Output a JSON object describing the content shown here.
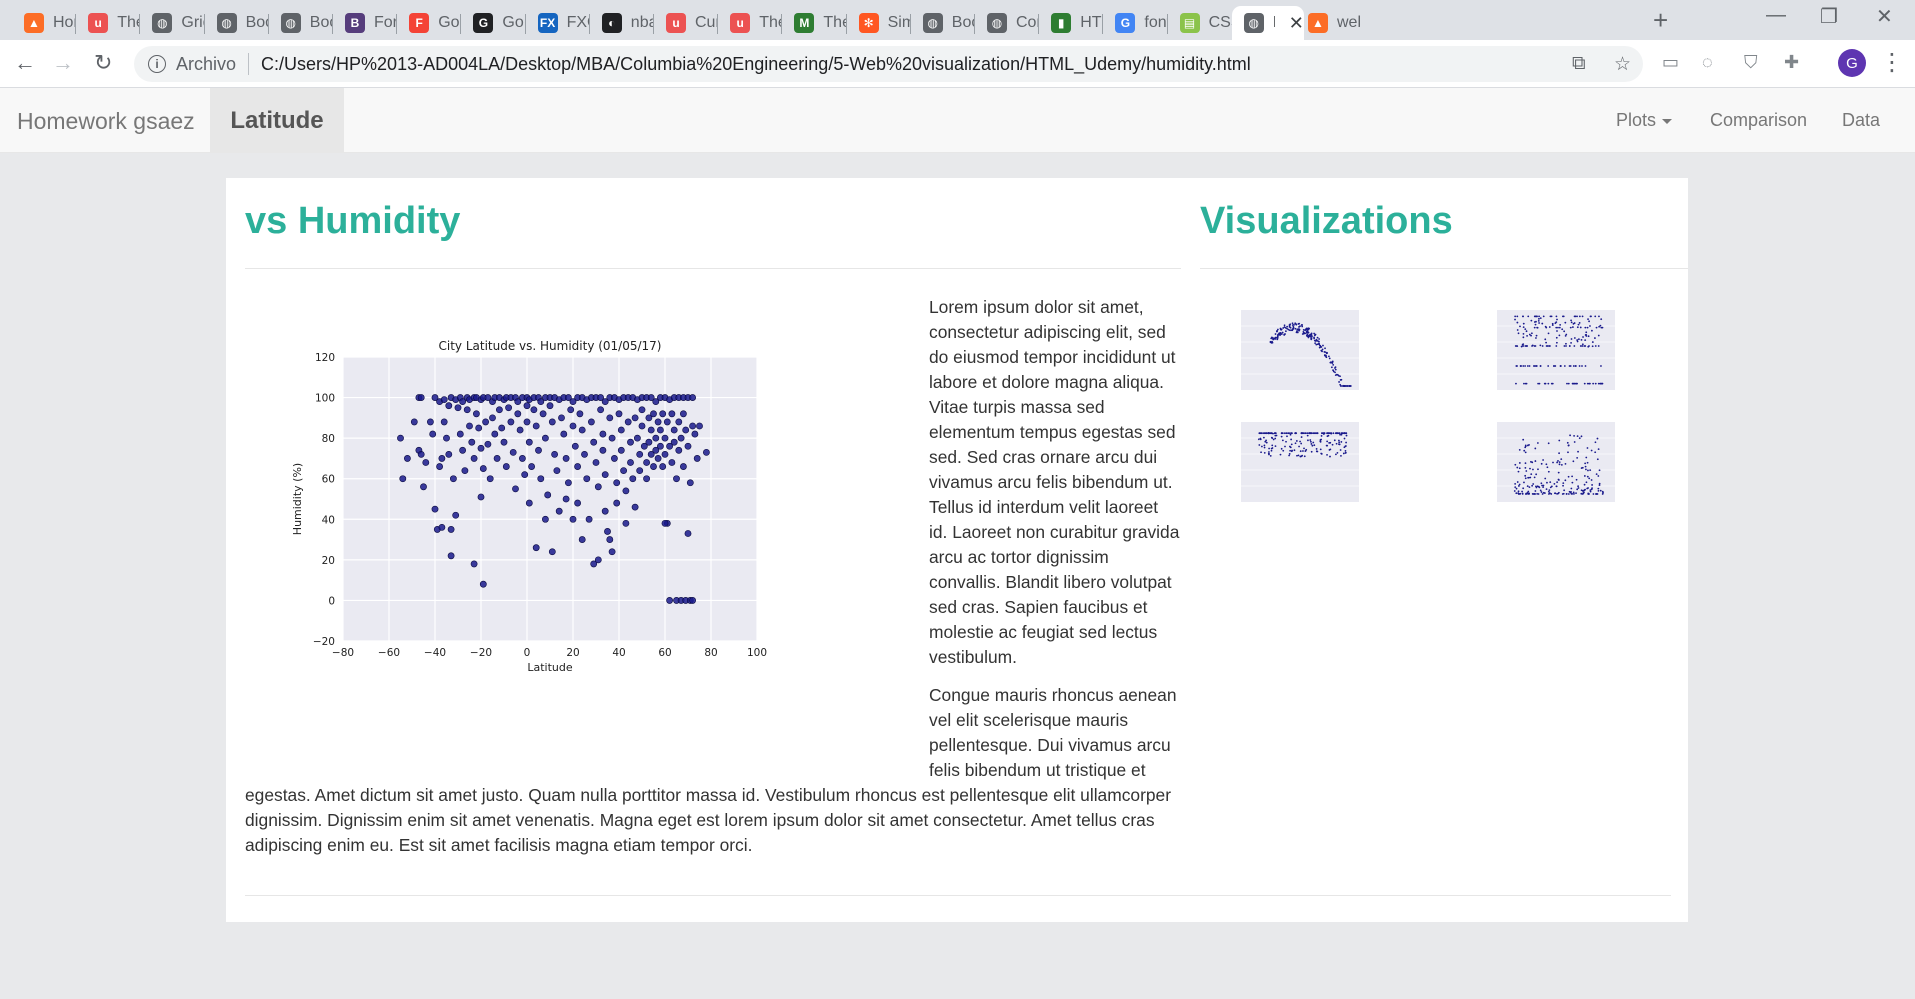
{
  "browser": {
    "tabs": [
      {
        "title": "Hom",
        "fav_color": "#fc6d26",
        "fav_glyph": "▲"
      },
      {
        "title": "The",
        "fav_color": "#ec5252",
        "fav_glyph": "u"
      },
      {
        "title": "Grid",
        "fav_color": "#5f6368",
        "fav_glyph": "◍"
      },
      {
        "title": "Boo",
        "fav_color": "#5f6368",
        "fav_glyph": "◍"
      },
      {
        "title": "Boo",
        "fav_color": "#5f6368",
        "fav_glyph": "◍"
      },
      {
        "title": "Forr",
        "fav_color": "#563d7c",
        "fav_glyph": "B"
      },
      {
        "title": "Goo",
        "fav_color": "#f44336",
        "fav_glyph": "F"
      },
      {
        "title": "GoD",
        "fav_color": "#202124",
        "fav_glyph": "G"
      },
      {
        "title": "FXC",
        "fav_color": "#1565c0",
        "fav_glyph": "FX"
      },
      {
        "title": "nba",
        "fav_color": "#202124",
        "fav_glyph": "◐"
      },
      {
        "title": "Curs",
        "fav_color": "#ec5252",
        "fav_glyph": "u"
      },
      {
        "title": "The",
        "fav_color": "#ec5252",
        "fav_glyph": "u"
      },
      {
        "title": "The",
        "fav_color": "#2e7d32",
        "fav_glyph": "M"
      },
      {
        "title": "Sim",
        "fav_color": "#ff5722",
        "fav_glyph": "✻"
      },
      {
        "title": "Boo",
        "fav_color": "#5f6368",
        "fav_glyph": "◍"
      },
      {
        "title": "Con",
        "fav_color": "#5f6368",
        "fav_glyph": "◍"
      },
      {
        "title": "HTM",
        "fav_color": "#2e7d32",
        "fav_glyph": "▮"
      },
      {
        "title": "font",
        "fav_color": "#4285f4",
        "fav_glyph": "G"
      },
      {
        "title": "CSS",
        "fav_color": "#8bc34a",
        "fav_glyph": "▤"
      },
      {
        "title": "I",
        "fav_color": "#5f6368",
        "fav_glyph": "◍",
        "active": true
      },
      {
        "title": "web",
        "fav_color": "#fc6d26",
        "fav_glyph": "▲"
      }
    ],
    "new_tab_glyph": "+",
    "omnibox": {
      "scheme_label": "Archivo",
      "url": "C:/Users/HP%2013-AD004LA/Desktop/MBA/Columbia%20Engineering/5-Web%20visualization/HTML_Udemy/humidity.html"
    },
    "avatar_letter": "G"
  },
  "navbar": {
    "brand": "Homework gsaez",
    "active": "Latitude",
    "links": {
      "plots": "Plots",
      "comparison": "Comparison",
      "data": "Data"
    }
  },
  "main": {
    "heading": "vs Humidity",
    "paragraphs": [
      "Lorem ipsum dolor sit amet, consectetur adipiscing elit, sed do eiusmod tempor incididunt ut labore et dolore magna aliqua. Vitae turpis massa sed elementum tempus egestas sed sed. Sed cras ornare arcu dui vivamus arcu felis bibendum ut. Tellus id interdum velit laoreet id. Laoreet non curabitur gravida arcu ac tortor dignissim convallis. Blandit libero volutpat sed cras. Sapien faucibus et molestie ac feugiat sed lectus vestibulum.",
      "Congue mauris rhoncus aenean vel elit scelerisque mauris pellentesque. Dui vivamus arcu felis bibendum ut tristique et egestas. Amet dictum sit amet justo. Quam nulla porttitor massa id. Vestibulum rhoncus est pellentesque elit ullamcorper dignissim. Dignissim enim sit amet venenatis. Magna eget est lorem ipsum dolor sit amet consectetur. Amet tellus cras adipiscing enim eu. Est sit amet facilisis magna etiam tempor orci."
    ]
  },
  "sidebar": {
    "heading": "Visualizations"
  },
  "chart_data": {
    "type": "scatter",
    "title": "City Latitude vs. Humidity (01/05/17)",
    "xlabel": "Latitude",
    "ylabel": "Humidity (%)",
    "xlim": [
      -80,
      100
    ],
    "ylim": [
      -20,
      120
    ],
    "xticks": [
      -80,
      -60,
      -40,
      -20,
      0,
      20,
      40,
      60,
      80,
      100
    ],
    "yticks": [
      -20,
      0,
      20,
      40,
      60,
      80,
      100,
      120
    ],
    "grid": true,
    "point_color": "#1a1a8c",
    "background": "#eaeaf2",
    "series": [
      {
        "points": [
          [
            -47,
            100
          ],
          [
            -46,
            100
          ],
          [
            -40,
            100
          ],
          [
            -38,
            98
          ],
          [
            -36,
            99
          ],
          [
            -34,
            96
          ],
          [
            -33,
            100
          ],
          [
            -31,
            99
          ],
          [
            -29,
            100
          ],
          [
            -28,
            98
          ],
          [
            -26,
            100
          ],
          [
            -25,
            99
          ],
          [
            -23,
            100
          ],
          [
            -22,
            100
          ],
          [
            -20,
            99
          ],
          [
            -19,
            100
          ],
          [
            -17,
            100
          ],
          [
            -15,
            98
          ],
          [
            -14,
            100
          ],
          [
            -12,
            100
          ],
          [
            -10,
            99
          ],
          [
            -9,
            100
          ],
          [
            -7,
            100
          ],
          [
            -5,
            100
          ],
          [
            -4,
            98
          ],
          [
            -2,
            100
          ],
          [
            0,
            100
          ],
          [
            1,
            99
          ],
          [
            3,
            100
          ],
          [
            5,
            100
          ],
          [
            6,
            98
          ],
          [
            8,
            100
          ],
          [
            10,
            100
          ],
          [
            12,
            100
          ],
          [
            14,
            99
          ],
          [
            16,
            100
          ],
          [
            18,
            100
          ],
          [
            20,
            98
          ],
          [
            22,
            100
          ],
          [
            24,
            100
          ],
          [
            26,
            99
          ],
          [
            28,
            100
          ],
          [
            30,
            100
          ],
          [
            32,
            100
          ],
          [
            34,
            98
          ],
          [
            36,
            100
          ],
          [
            38,
            100
          ],
          [
            40,
            99
          ],
          [
            42,
            100
          ],
          [
            44,
            100
          ],
          [
            46,
            100
          ],
          [
            48,
            99
          ],
          [
            50,
            100
          ],
          [
            52,
            100
          ],
          [
            54,
            100
          ],
          [
            56,
            98
          ],
          [
            58,
            100
          ],
          [
            60,
            100
          ],
          [
            62,
            99
          ],
          [
            64,
            100
          ],
          [
            66,
            100
          ],
          [
            68,
            100
          ],
          [
            70,
            100
          ],
          [
            72,
            100
          ],
          [
            -55,
            80
          ],
          [
            -54,
            60
          ],
          [
            -52,
            70
          ],
          [
            -49,
            88
          ],
          [
            -47,
            74
          ],
          [
            -46,
            72
          ],
          [
            -45,
            56
          ],
          [
            -44,
            68
          ],
          [
            -42,
            88
          ],
          [
            -41,
            82
          ],
          [
            -40,
            45
          ],
          [
            -39,
            35
          ],
          [
            -38,
            66
          ],
          [
            -37,
            70
          ],
          [
            -37,
            36
          ],
          [
            -36,
            88
          ],
          [
            -35,
            80
          ],
          [
            -34,
            72
          ],
          [
            -33,
            35
          ],
          [
            -33,
            22
          ],
          [
            -32,
            60
          ],
          [
            -31,
            42
          ],
          [
            -30,
            95
          ],
          [
            -29,
            82
          ],
          [
            -28,
            74
          ],
          [
            -27,
            64
          ],
          [
            -26,
            94
          ],
          [
            -25,
            86
          ],
          [
            -24,
            78
          ],
          [
            -23,
            70
          ],
          [
            -23,
            18
          ],
          [
            -22,
            92
          ],
          [
            -21,
            85
          ],
          [
            -20,
            75
          ],
          [
            -20,
            51
          ],
          [
            -19,
            65
          ],
          [
            -19,
            8
          ],
          [
            -18,
            88
          ],
          [
            -17,
            77
          ],
          [
            -16,
            60
          ],
          [
            -15,
            90
          ],
          [
            -14,
            82
          ],
          [
            -13,
            70
          ],
          [
            -12,
            94
          ],
          [
            -11,
            85
          ],
          [
            -10,
            78
          ],
          [
            -9,
            66
          ],
          [
            -8,
            95
          ],
          [
            -7,
            88
          ],
          [
            -6,
            73
          ],
          [
            -5,
            55
          ],
          [
            -4,
            92
          ],
          [
            -3,
            84
          ],
          [
            -2,
            70
          ],
          [
            -1,
            62
          ],
          [
            0,
            96
          ],
          [
            0,
            88
          ],
          [
            1,
            78
          ],
          [
            1,
            48
          ],
          [
            2,
            66
          ],
          [
            3,
            94
          ],
          [
            4,
            86
          ],
          [
            4,
            26
          ],
          [
            5,
            74
          ],
          [
            6,
            60
          ],
          [
            7,
            92
          ],
          [
            8,
            80
          ],
          [
            8,
            40
          ],
          [
            9,
            52
          ],
          [
            10,
            96
          ],
          [
            11,
            88
          ],
          [
            11,
            24
          ],
          [
            12,
            72
          ],
          [
            13,
            64
          ],
          [
            14,
            44
          ],
          [
            15,
            90
          ],
          [
            16,
            82
          ],
          [
            17,
            70
          ],
          [
            17,
            50
          ],
          [
            18,
            58
          ],
          [
            19,
            94
          ],
          [
            20,
            86
          ],
          [
            20,
            40
          ],
          [
            21,
            76
          ],
          [
            22,
            66
          ],
          [
            22,
            48
          ],
          [
            23,
            92
          ],
          [
            24,
            84
          ],
          [
            24,
            30
          ],
          [
            25,
            72
          ],
          [
            26,
            60
          ],
          [
            27,
            40
          ],
          [
            28,
            88
          ],
          [
            29,
            78
          ],
          [
            29,
            18
          ],
          [
            30,
            68
          ],
          [
            31,
            56
          ],
          [
            31,
            20
          ],
          [
            32,
            94
          ],
          [
            33,
            82
          ],
          [
            33,
            74
          ],
          [
            34,
            62
          ],
          [
            34,
            44
          ],
          [
            35,
            34
          ],
          [
            36,
            90
          ],
          [
            36,
            30
          ],
          [
            37,
            80
          ],
          [
            37,
            24
          ],
          [
            38,
            70
          ],
          [
            39,
            58
          ],
          [
            39,
            48
          ],
          [
            40,
            92
          ],
          [
            41,
            84
          ],
          [
            41,
            74
          ],
          [
            42,
            64
          ],
          [
            43,
            54
          ],
          [
            43,
            38
          ],
          [
            44,
            88
          ],
          [
            45,
            78
          ],
          [
            45,
            68
          ],
          [
            46,
            60
          ],
          [
            47,
            90
          ],
          [
            47,
            46
          ],
          [
            48,
            80
          ],
          [
            49,
            72
          ],
          [
            49,
            64
          ],
          [
            50,
            94
          ],
          [
            50,
            86
          ],
          [
            51,
            76
          ],
          [
            52,
            68
          ],
          [
            52,
            60
          ],
          [
            53,
            90
          ],
          [
            53,
            78
          ],
          [
            54,
            84
          ],
          [
            54,
            72
          ],
          [
            55,
            92
          ],
          [
            55,
            66
          ],
          [
            56,
            80
          ],
          [
            56,
            74
          ],
          [
            57,
            88
          ],
          [
            57,
            70
          ],
          [
            58,
            84
          ],
          [
            58,
            76
          ],
          [
            59,
            92
          ],
          [
            59,
            66
          ],
          [
            60,
            80
          ],
          [
            60,
            72
          ],
          [
            61,
            88
          ],
          [
            61,
            38
          ],
          [
            62,
            76
          ],
          [
            62,
            0
          ],
          [
            63,
            92
          ],
          [
            63,
            68
          ],
          [
            64,
            84
          ],
          [
            64,
            78
          ],
          [
            65,
            60
          ],
          [
            65,
            0
          ],
          [
            66,
            88
          ],
          [
            66,
            74
          ],
          [
            67,
            80
          ],
          [
            67,
            0
          ],
          [
            68,
            92
          ],
          [
            68,
            66
          ],
          [
            69,
            84
          ],
          [
            69,
            0
          ],
          [
            70,
            76
          ],
          [
            70,
            33
          ],
          [
            71,
            0
          ],
          [
            71,
            58
          ],
          [
            72,
            86
          ],
          [
            72,
            0
          ],
          [
            73,
            82
          ],
          [
            74,
            70
          ],
          [
            75,
            86
          ],
          [
            78,
            73
          ],
          [
            60,
            38
          ]
        ]
      }
    ]
  }
}
